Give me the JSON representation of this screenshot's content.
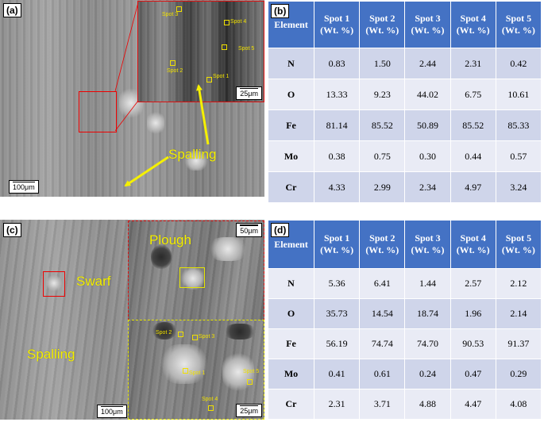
{
  "panels": {
    "a": {
      "label": "(a)",
      "scale_main": "100μm",
      "scale_inset": "25μm",
      "spots": [
        "Spot 1",
        "Spot 2",
        "Spot 3",
        "Spot 4",
        "Spot 5"
      ],
      "annotation": "Spalling"
    },
    "b": {
      "label": "(b)"
    },
    "c": {
      "label": "(c)",
      "scale_main": "100μm",
      "scale_inset_top": "50μm",
      "scale_inset_bottom": "25μm",
      "spots": [
        "Spot 1",
        "Spot 2",
        "Spot 3",
        "Spot 4",
        "Spot 5"
      ],
      "annotations": {
        "swarf": "Swarf",
        "plough": "Plough",
        "spalling": "Spalling"
      }
    },
    "d": {
      "label": "(d)"
    }
  },
  "table_b": {
    "headers": [
      {
        "l1": "Element",
        "l2": ""
      },
      {
        "l1": "Spot 1",
        "l2": "(Wt. %)"
      },
      {
        "l1": "Spot 2",
        "l2": "(Wt. %)"
      },
      {
        "l1": "Spot 3",
        "l2": "(Wt. %)"
      },
      {
        "l1": "Spot 4",
        "l2": "(Wt. %)"
      },
      {
        "l1": "Spot 5",
        "l2": "(Wt. %)"
      }
    ],
    "rows": [
      [
        "N",
        "0.83",
        "1.50",
        "2.44",
        "2.31",
        "0.42"
      ],
      [
        "O",
        "13.33",
        "9.23",
        "44.02",
        "6.75",
        "10.61"
      ],
      [
        "Fe",
        "81.14",
        "85.52",
        "50.89",
        "85.52",
        "85.33"
      ],
      [
        "Mo",
        "0.38",
        "0.75",
        "0.30",
        "0.44",
        "0.57"
      ],
      [
        "Cr",
        "4.33",
        "2.99",
        "2.34",
        "4.97",
        "3.24"
      ]
    ]
  },
  "table_d": {
    "headers": [
      {
        "l1": "Element",
        "l2": ""
      },
      {
        "l1": "Spot 1",
        "l2": "(Wt. %)"
      },
      {
        "l1": "Spot 2",
        "l2": "(Wt. %)"
      },
      {
        "l1": "Spot 3",
        "l2": "(Wt. %)"
      },
      {
        "l1": "Spot 4",
        "l2": "(Wt. %)"
      },
      {
        "l1": "Spot 5",
        "l2": "(Wt. %)"
      }
    ],
    "rows": [
      [
        "N",
        "5.36",
        "6.41",
        "1.44",
        "2.57",
        "2.12"
      ],
      [
        "O",
        "35.73",
        "14.54",
        "18.74",
        "1.96",
        "2.14"
      ],
      [
        "Fe",
        "56.19",
        "74.74",
        "74.70",
        "90.53",
        "91.37"
      ],
      [
        "Mo",
        "0.41",
        "0.61",
        "0.24",
        "0.47",
        "0.29"
      ],
      [
        "Cr",
        "2.31",
        "3.71",
        "4.88",
        "4.47",
        "4.08"
      ]
    ]
  },
  "colors": {
    "header_blue": "#4472c4",
    "row_odd": "#cfd5ea",
    "row_even": "#e9ebf5",
    "annotation_yellow": "#f5f000",
    "box_red": "#e00000"
  }
}
